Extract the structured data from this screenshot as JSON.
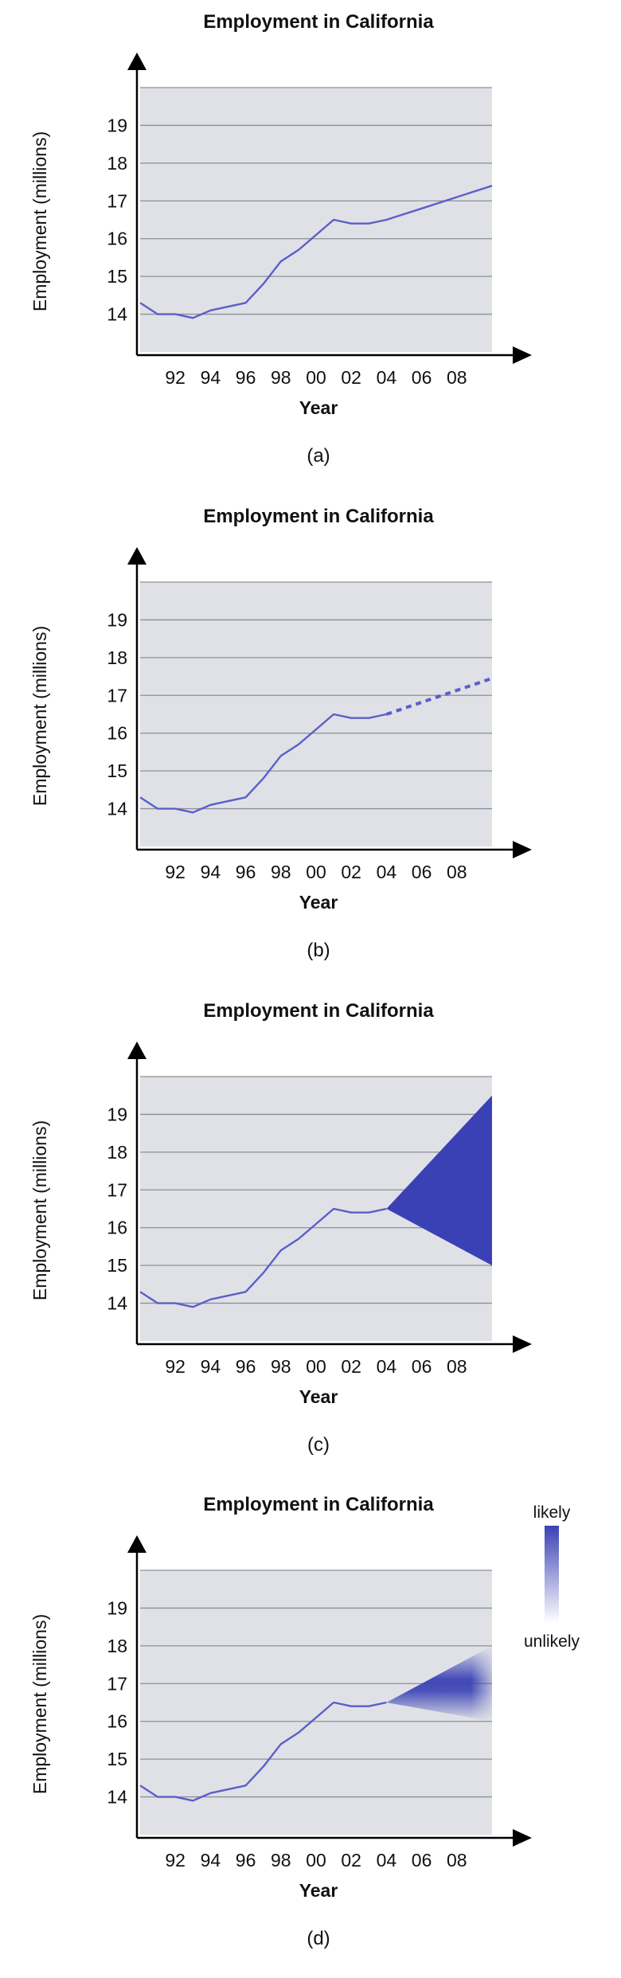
{
  "panels": [
    {
      "panel_label": "(a)",
      "variant": "observed",
      "chart_data": {
        "type": "line",
        "title": "Employment in California",
        "xlabel": "Year",
        "ylabel": "Employment (millions)",
        "x_ticks": [
          "92",
          "94",
          "96",
          "98",
          "00",
          "02",
          "04",
          "06",
          "08"
        ],
        "y_ticks": [
          14,
          15,
          16,
          17,
          18,
          19
        ],
        "xlim": [
          1990,
          2010
        ],
        "ylim": [
          13,
          20
        ],
        "grid": true,
        "series": [
          {
            "x": [
              1990,
              1991,
              1992,
              1993,
              1994,
              1995,
              1996,
              1997,
              1998,
              1999,
              2000,
              2001,
              2002,
              2003,
              2004,
              2005,
              2006,
              2007,
              2008,
              2009,
              2010
            ],
            "values": [
              14.3,
              14.0,
              14.0,
              13.9,
              14.1,
              14.2,
              14.3,
              14.8,
              15.4,
              15.7,
              16.1,
              16.5,
              16.4,
              16.4,
              16.5,
              16.65,
              16.8,
              16.95,
              17.1,
              17.25,
              17.4
            ]
          }
        ]
      }
    },
    {
      "panel_label": "(b)",
      "variant": "dashed-forecast",
      "chart_data": {
        "type": "line",
        "title": "Employment in California",
        "xlabel": "Year",
        "ylabel": "Employment (millions)",
        "x_ticks": [
          "92",
          "94",
          "96",
          "98",
          "00",
          "02",
          "04",
          "06",
          "08"
        ],
        "y_ticks": [
          14,
          15,
          16,
          17,
          18,
          19
        ],
        "xlim": [
          1990,
          2010
        ],
        "ylim": [
          13,
          20
        ],
        "grid": true,
        "series": [
          {
            "x": [
              1990,
              1991,
              1992,
              1993,
              1994,
              1995,
              1996,
              1997,
              1998,
              1999,
              2000,
              2001,
              2002,
              2003,
              2004
            ],
            "values": [
              14.3,
              14.0,
              14.0,
              13.9,
              14.1,
              14.2,
              14.3,
              14.8,
              15.4,
              15.7,
              16.1,
              16.5,
              16.4,
              16.4,
              16.5
            ]
          },
          {
            "x": [
              2004,
              2010
            ],
            "values": [
              16.5,
              17.45
            ],
            "style": "dashed"
          }
        ]
      }
    },
    {
      "panel_label": "(c)",
      "variant": "cone-forecast",
      "chart_data": {
        "type": "line",
        "title": "Employment in California",
        "xlabel": "Year",
        "ylabel": "Employment (millions)",
        "x_ticks": [
          "92",
          "94",
          "96",
          "98",
          "00",
          "02",
          "04",
          "06",
          "08"
        ],
        "y_ticks": [
          14,
          15,
          16,
          17,
          18,
          19
        ],
        "xlim": [
          1990,
          2010
        ],
        "ylim": [
          13,
          20
        ],
        "grid": true,
        "series": [
          {
            "x": [
              1990,
              1991,
              1992,
              1993,
              1994,
              1995,
              1996,
              1997,
              1998,
              1999,
              2000,
              2001,
              2002,
              2003,
              2004
            ],
            "values": [
              14.3,
              14.0,
              14.0,
              13.9,
              14.1,
              14.2,
              14.3,
              14.8,
              15.4,
              15.7,
              16.1,
              16.5,
              16.4,
              16.4,
              16.5
            ]
          }
        ],
        "forecast_band": {
          "x_start": 2004,
          "y_start": 16.5,
          "x_end": 2010,
          "y_high": 19.5,
          "y_low": 15.0
        }
      }
    },
    {
      "panel_label": "(d)",
      "variant": "gradient-forecast",
      "chart_data": {
        "type": "line",
        "title": "Employment in California",
        "xlabel": "Year",
        "ylabel": "Employment (millions)",
        "x_ticks": [
          "92",
          "94",
          "96",
          "98",
          "00",
          "02",
          "04",
          "06",
          "08"
        ],
        "y_ticks": [
          14,
          15,
          16,
          17,
          18,
          19
        ],
        "xlim": [
          1990,
          2010
        ],
        "ylim": [
          13,
          20
        ],
        "grid": true,
        "series": [
          {
            "x": [
              1990,
              1991,
              1992,
              1993,
              1994,
              1995,
              1996,
              1997,
              1998,
              1999,
              2000,
              2001,
              2002,
              2003,
              2004
            ],
            "values": [
              14.3,
              14.0,
              14.0,
              13.9,
              14.1,
              14.2,
              14.3,
              14.8,
              15.4,
              15.7,
              16.1,
              16.5,
              16.4,
              16.4,
              16.5
            ]
          }
        ],
        "forecast_band": {
          "x_start": 2004,
          "y_start": 16.5,
          "x_end": 2010,
          "y_high": 18.0,
          "y_low": 16.0
        },
        "legend": {
          "top_label": "likely",
          "bottom_label": "unlikely"
        }
      }
    }
  ],
  "colors": {
    "line": "#5a5fc8",
    "band": "#3a41b5",
    "plot_bg": "#dfe1e6",
    "grid": "#8d8f98",
    "axis": "#000000"
  }
}
